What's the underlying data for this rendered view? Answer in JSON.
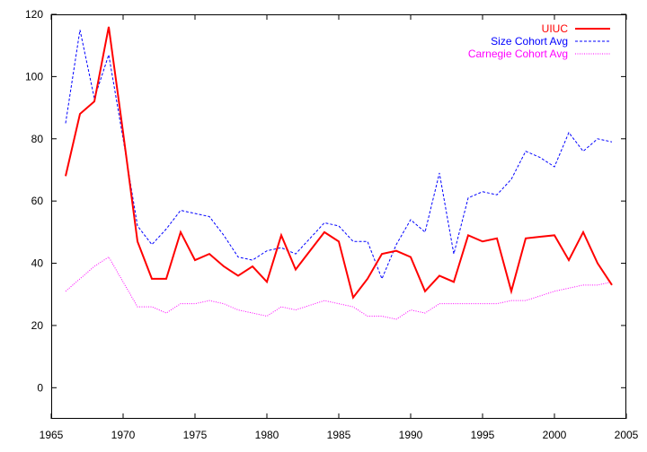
{
  "chart_data": {
    "type": "line",
    "title": "",
    "xlabel": "",
    "ylabel": "",
    "xlim": [
      1965,
      2005
    ],
    "ylim": [
      -10,
      120
    ],
    "xticks": [
      1965,
      1970,
      1975,
      1980,
      1985,
      1990,
      1995,
      2000,
      2005
    ],
    "yticks": [
      0,
      20,
      40,
      60,
      80,
      100,
      120
    ],
    "grid": false,
    "legend_position": "top-right",
    "x": [
      1966,
      1967,
      1968,
      1969,
      1970,
      1971,
      1972,
      1973,
      1974,
      1975,
      1976,
      1977,
      1978,
      1979,
      1980,
      1981,
      1982,
      1983,
      1984,
      1985,
      1986,
      1987,
      1988,
      1989,
      1990,
      1991,
      1992,
      1993,
      1994,
      1995,
      1996,
      1997,
      1998,
      1999,
      2000,
      2001,
      2002,
      2003,
      2004
    ],
    "series": [
      {
        "name": "UIUC",
        "color": "#ff0000",
        "style": "solid",
        "values": [
          68,
          88,
          92,
          116,
          82,
          47,
          35,
          35,
          50,
          41,
          43,
          39,
          36,
          39,
          34,
          49,
          38,
          44,
          50,
          47,
          29,
          35,
          43,
          44,
          42,
          31,
          36,
          34,
          49,
          47,
          48,
          31,
          48,
          48.5,
          49,
          41,
          50,
          40,
          33
        ]
      },
      {
        "name": "Size Cohort Avg",
        "color": "#0000ff",
        "style": "dashed",
        "values": [
          85,
          115,
          93,
          107,
          80,
          52,
          46,
          51,
          57,
          56,
          55,
          49,
          42,
          41,
          44,
          45,
          43,
          48,
          53,
          52,
          47,
          47,
          35,
          46,
          54,
          50,
          69,
          43,
          61,
          63,
          62,
          67,
          76,
          74,
          71,
          82,
          76,
          80,
          79
        ]
      },
      {
        "name": "Carnegie Cohort Avg",
        "color": "#ff00ff",
        "style": "dotted",
        "values": [
          31,
          35,
          39,
          42,
          34,
          26,
          26,
          24,
          27,
          27,
          28,
          27,
          25,
          24,
          23,
          26,
          25,
          26.5,
          28,
          27,
          26,
          23,
          23,
          22,
          25,
          24,
          27,
          27,
          27,
          27,
          27,
          28,
          28,
          29.5,
          31,
          32,
          33,
          33,
          34
        ]
      }
    ]
  }
}
